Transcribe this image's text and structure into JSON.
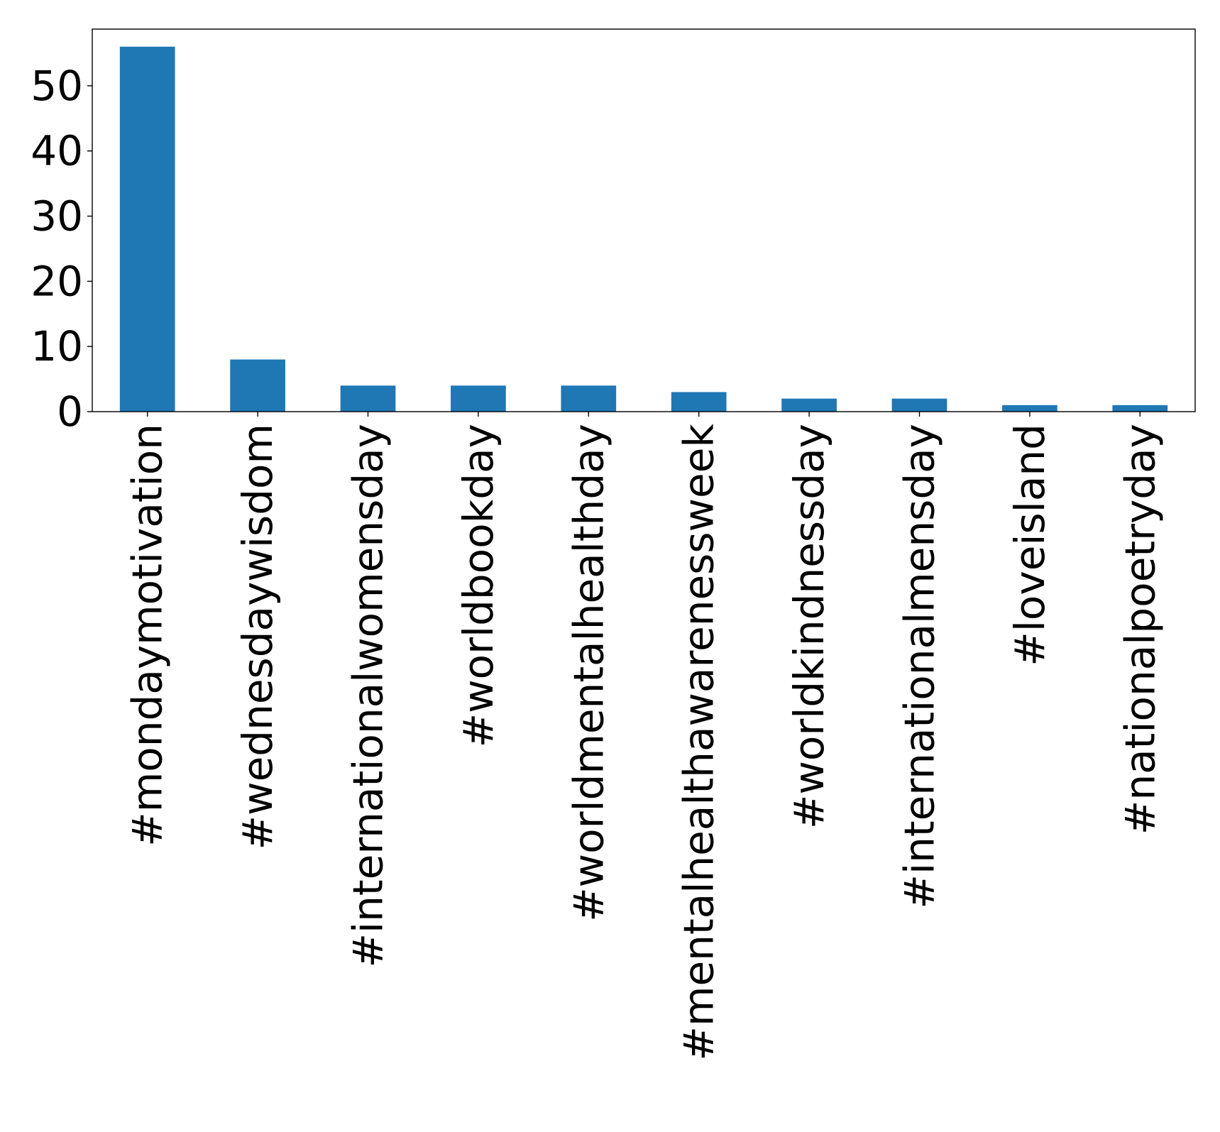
{
  "chart_data": {
    "type": "bar",
    "title": "",
    "xlabel": "",
    "ylabel": "",
    "categories": [
      "#mondaymotivation",
      "#wednesdaywisdom",
      "#internationalwomensday",
      "#worldbookday",
      "#worldmentalhealthday",
      "#mentalhealthawarenessweek",
      "#worldkindnessday",
      "#internationalmensday",
      "#loveisland",
      "#nationalpoetryday"
    ],
    "values": [
      56,
      8,
      4,
      4,
      4,
      3,
      2,
      2,
      1,
      1
    ],
    "ylim": [
      0,
      58.7
    ],
    "yticks": [
      0,
      10,
      20,
      30,
      40,
      50
    ],
    "ytick_labels": [
      "0",
      "10",
      "20",
      "30",
      "40",
      "50"
    ],
    "bar_color": "#1f77b4",
    "grid": false,
    "legend": "none"
  }
}
